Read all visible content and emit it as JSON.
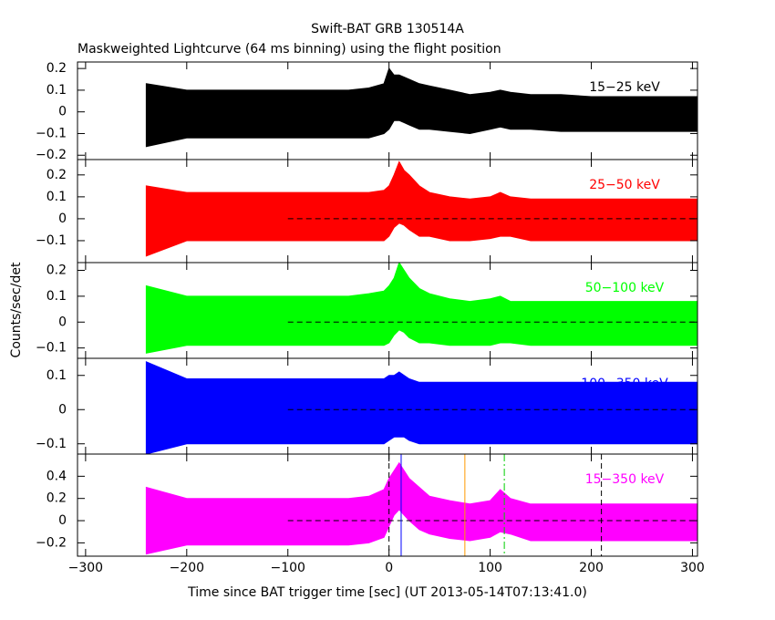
{
  "title": "Swift-BAT GRB 130514A",
  "subtitle": "Maskweighted Lightcurve (64 ms binning) using the flight position",
  "xlabel": "Time since BAT trigger time [sec] (UT 2013-05-14T07:13:41.0)",
  "ylabel": "Counts/sec/det",
  "chart_data": [
    {
      "type": "band",
      "xlim": [
        -308,
        305
      ],
      "ylim": [
        -0.22,
        0.23
      ],
      "xticks": [
        {
          "value": -300,
          "label": "−300"
        },
        {
          "value": -200,
          "label": "−200"
        },
        {
          "value": -100,
          "label": "−100"
        },
        0,
        100,
        200,
        300
      ],
      "yticks": [
        {
          "value": -0.2,
          "label": "−0.2"
        },
        {
          "value": -0.1,
          "label": "−0.1"
        },
        0,
        0.1,
        0.2
      ],
      "x": [
        -240,
        -200,
        -160,
        -120,
        -80,
        -40,
        -20,
        -5,
        0,
        5,
        10,
        15,
        20,
        30,
        40,
        60,
        80,
        100,
        110,
        120,
        140,
        170,
        200,
        240,
        280,
        310
      ],
      "series": [
        {
          "name": "15−25 keV",
          "color": "#000000",
          "upper": [
            0.13,
            0.1,
            0.1,
            0.1,
            0.1,
            0.1,
            0.11,
            0.13,
            0.2,
            0.17,
            0.17,
            0.16,
            0.15,
            0.13,
            0.12,
            0.1,
            0.08,
            0.09,
            0.1,
            0.09,
            0.08,
            0.08,
            0.07,
            0.07,
            0.07,
            0.07
          ],
          "lower": [
            -0.16,
            -0.12,
            -0.12,
            -0.12,
            -0.12,
            -0.12,
            -0.12,
            -0.1,
            -0.08,
            -0.04,
            -0.04,
            -0.05,
            -0.06,
            -0.08,
            -0.08,
            -0.09,
            -0.1,
            -0.08,
            -0.07,
            -0.08,
            -0.08,
            -0.09,
            -0.09,
            -0.09,
            -0.09,
            -0.09
          ]
        }
      ]
    },
    {
      "type": "band",
      "xlim": [
        -308,
        305
      ],
      "ylim": [
        -0.2,
        0.27
      ],
      "xticks": [
        {
          "value": -300,
          "label": "−300"
        },
        {
          "value": -200,
          "label": "−200"
        },
        {
          "value": -100,
          "label": "−100"
        },
        0,
        100,
        200,
        300
      ],
      "yticks": [
        {
          "value": -0.1,
          "label": "−0.1"
        },
        0,
        0.1,
        0.2
      ],
      "refline": {
        "y": 0,
        "x": [
          -100,
          305
        ]
      },
      "x": [
        -240,
        -200,
        -160,
        -120,
        -80,
        -40,
        -20,
        -5,
        0,
        5,
        10,
        15,
        20,
        30,
        40,
        60,
        80,
        100,
        110,
        120,
        140,
        170,
        200,
        240,
        280,
        310
      ],
      "series": [
        {
          "name": "25−50 keV",
          "color": "#ff0000",
          "upper": [
            0.15,
            0.12,
            0.12,
            0.12,
            0.12,
            0.12,
            0.12,
            0.13,
            0.15,
            0.2,
            0.26,
            0.22,
            0.2,
            0.15,
            0.12,
            0.1,
            0.09,
            0.1,
            0.12,
            0.1,
            0.09,
            0.09,
            0.09,
            0.09,
            0.09,
            0.09
          ],
          "lower": [
            -0.17,
            -0.1,
            -0.1,
            -0.1,
            -0.1,
            -0.1,
            -0.1,
            -0.1,
            -0.08,
            -0.04,
            -0.02,
            -0.03,
            -0.05,
            -0.08,
            -0.08,
            -0.1,
            -0.1,
            -0.09,
            -0.08,
            -0.08,
            -0.1,
            -0.1,
            -0.1,
            -0.1,
            -0.1,
            -0.1
          ]
        }
      ]
    },
    {
      "type": "band",
      "xlim": [
        -308,
        305
      ],
      "ylim": [
        -0.14,
        0.23
      ],
      "xticks": [
        {
          "value": -300,
          "label": "−300"
        },
        {
          "value": -200,
          "label": "−200"
        },
        {
          "value": -100,
          "label": "−100"
        },
        0,
        100,
        200,
        300
      ],
      "yticks": [
        {
          "value": -0.1,
          "label": "−0.1"
        },
        0,
        0.1,
        0.2
      ],
      "refline": {
        "y": 0,
        "x": [
          -100,
          305
        ]
      },
      "x": [
        -240,
        -200,
        -160,
        -120,
        -80,
        -40,
        -20,
        -5,
        0,
        5,
        10,
        15,
        20,
        30,
        40,
        60,
        80,
        100,
        110,
        120,
        140,
        170,
        200,
        240,
        280,
        310
      ],
      "series": [
        {
          "name": "50−100 keV",
          "color": "#00ff00",
          "upper": [
            0.14,
            0.1,
            0.1,
            0.1,
            0.1,
            0.1,
            0.11,
            0.12,
            0.14,
            0.17,
            0.23,
            0.2,
            0.17,
            0.13,
            0.11,
            0.09,
            0.08,
            0.09,
            0.1,
            0.08,
            0.08,
            0.08,
            0.08,
            0.08,
            0.08,
            0.08
          ],
          "lower": [
            -0.12,
            -0.09,
            -0.09,
            -0.09,
            -0.09,
            -0.09,
            -0.09,
            -0.09,
            -0.08,
            -0.05,
            -0.03,
            -0.04,
            -0.06,
            -0.08,
            -0.08,
            -0.09,
            -0.09,
            -0.09,
            -0.08,
            -0.08,
            -0.09,
            -0.09,
            -0.09,
            -0.09,
            -0.09,
            -0.09
          ]
        }
      ]
    },
    {
      "type": "band",
      "xlim": [
        -308,
        305
      ],
      "ylim": [
        -0.13,
        0.15
      ],
      "xticks": [
        {
          "value": -300,
          "label": "−300"
        },
        {
          "value": -200,
          "label": "−200"
        },
        {
          "value": -100,
          "label": "−100"
        },
        0,
        100,
        200,
        300
      ],
      "yticks": [
        {
          "value": -0.1,
          "label": "−0.1"
        },
        0,
        0.1
      ],
      "refline": {
        "y": 0,
        "x": [
          -100,
          305
        ]
      },
      "x": [
        -240,
        -200,
        -160,
        -120,
        -80,
        -40,
        -20,
        -5,
        0,
        5,
        10,
        15,
        20,
        30,
        40,
        60,
        80,
        100,
        110,
        120,
        140,
        170,
        200,
        240,
        280,
        310
      ],
      "series": [
        {
          "name": "100−350 keV",
          "color": "#0000ff",
          "upper": [
            0.14,
            0.09,
            0.09,
            0.09,
            0.09,
            0.09,
            0.09,
            0.09,
            0.1,
            0.1,
            0.11,
            0.1,
            0.09,
            0.08,
            0.08,
            0.08,
            0.08,
            0.08,
            0.08,
            0.08,
            0.08,
            0.08,
            0.08,
            0.08,
            0.08,
            0.08
          ],
          "lower": [
            -0.13,
            -0.1,
            -0.1,
            -0.1,
            -0.1,
            -0.1,
            -0.1,
            -0.1,
            -0.09,
            -0.08,
            -0.08,
            -0.08,
            -0.09,
            -0.1,
            -0.1,
            -0.1,
            -0.1,
            -0.1,
            -0.1,
            -0.1,
            -0.1,
            -0.1,
            -0.1,
            -0.1,
            -0.1,
            -0.1
          ]
        }
      ]
    },
    {
      "type": "band",
      "xlim": [
        -308,
        305
      ],
      "ylim": [
        -0.32,
        0.6
      ],
      "xticks": [
        {
          "value": -300,
          "label": "−300"
        },
        {
          "value": -200,
          "label": "−200"
        },
        {
          "value": -100,
          "label": "−100"
        },
        0,
        100,
        200,
        300
      ],
      "yticks": [
        {
          "value": -0.2,
          "label": "−0.2"
        },
        0,
        0.2,
        0.4
      ],
      "refline": {
        "y": 0,
        "x": [
          -100,
          305
        ]
      },
      "markers": [
        {
          "x": 0,
          "color": "#000000",
          "dash": "6,4"
        },
        {
          "x": 12,
          "color": "#0000ff",
          "dash": "none"
        },
        {
          "x": 75,
          "color": "#ff9900",
          "dash": "none"
        },
        {
          "x": 114,
          "color": "#00cc00",
          "dash": "8,3,2,3"
        },
        {
          "x": 210,
          "color": "#000000",
          "dash": "6,4"
        }
      ],
      "x": [
        -240,
        -200,
        -160,
        -120,
        -80,
        -40,
        -20,
        -5,
        0,
        5,
        10,
        15,
        20,
        30,
        40,
        60,
        80,
        100,
        110,
        120,
        140,
        170,
        200,
        240,
        280,
        310
      ],
      "series": [
        {
          "name": "15−350 keV",
          "color": "#ff00ff",
          "upper": [
            0.3,
            0.2,
            0.2,
            0.2,
            0.2,
            0.2,
            0.22,
            0.28,
            0.38,
            0.45,
            0.52,
            0.45,
            0.38,
            0.3,
            0.22,
            0.18,
            0.15,
            0.18,
            0.28,
            0.2,
            0.15,
            0.15,
            0.15,
            0.15,
            0.15,
            0.15
          ],
          "lower": [
            -0.3,
            -0.22,
            -0.22,
            -0.22,
            -0.22,
            -0.22,
            -0.2,
            -0.15,
            -0.05,
            0.05,
            0.1,
            0.05,
            0,
            -0.08,
            -0.12,
            -0.16,
            -0.18,
            -0.15,
            -0.1,
            -0.12,
            -0.18,
            -0.18,
            -0.18,
            -0.18,
            -0.18,
            -0.18
          ]
        }
      ]
    }
  ]
}
